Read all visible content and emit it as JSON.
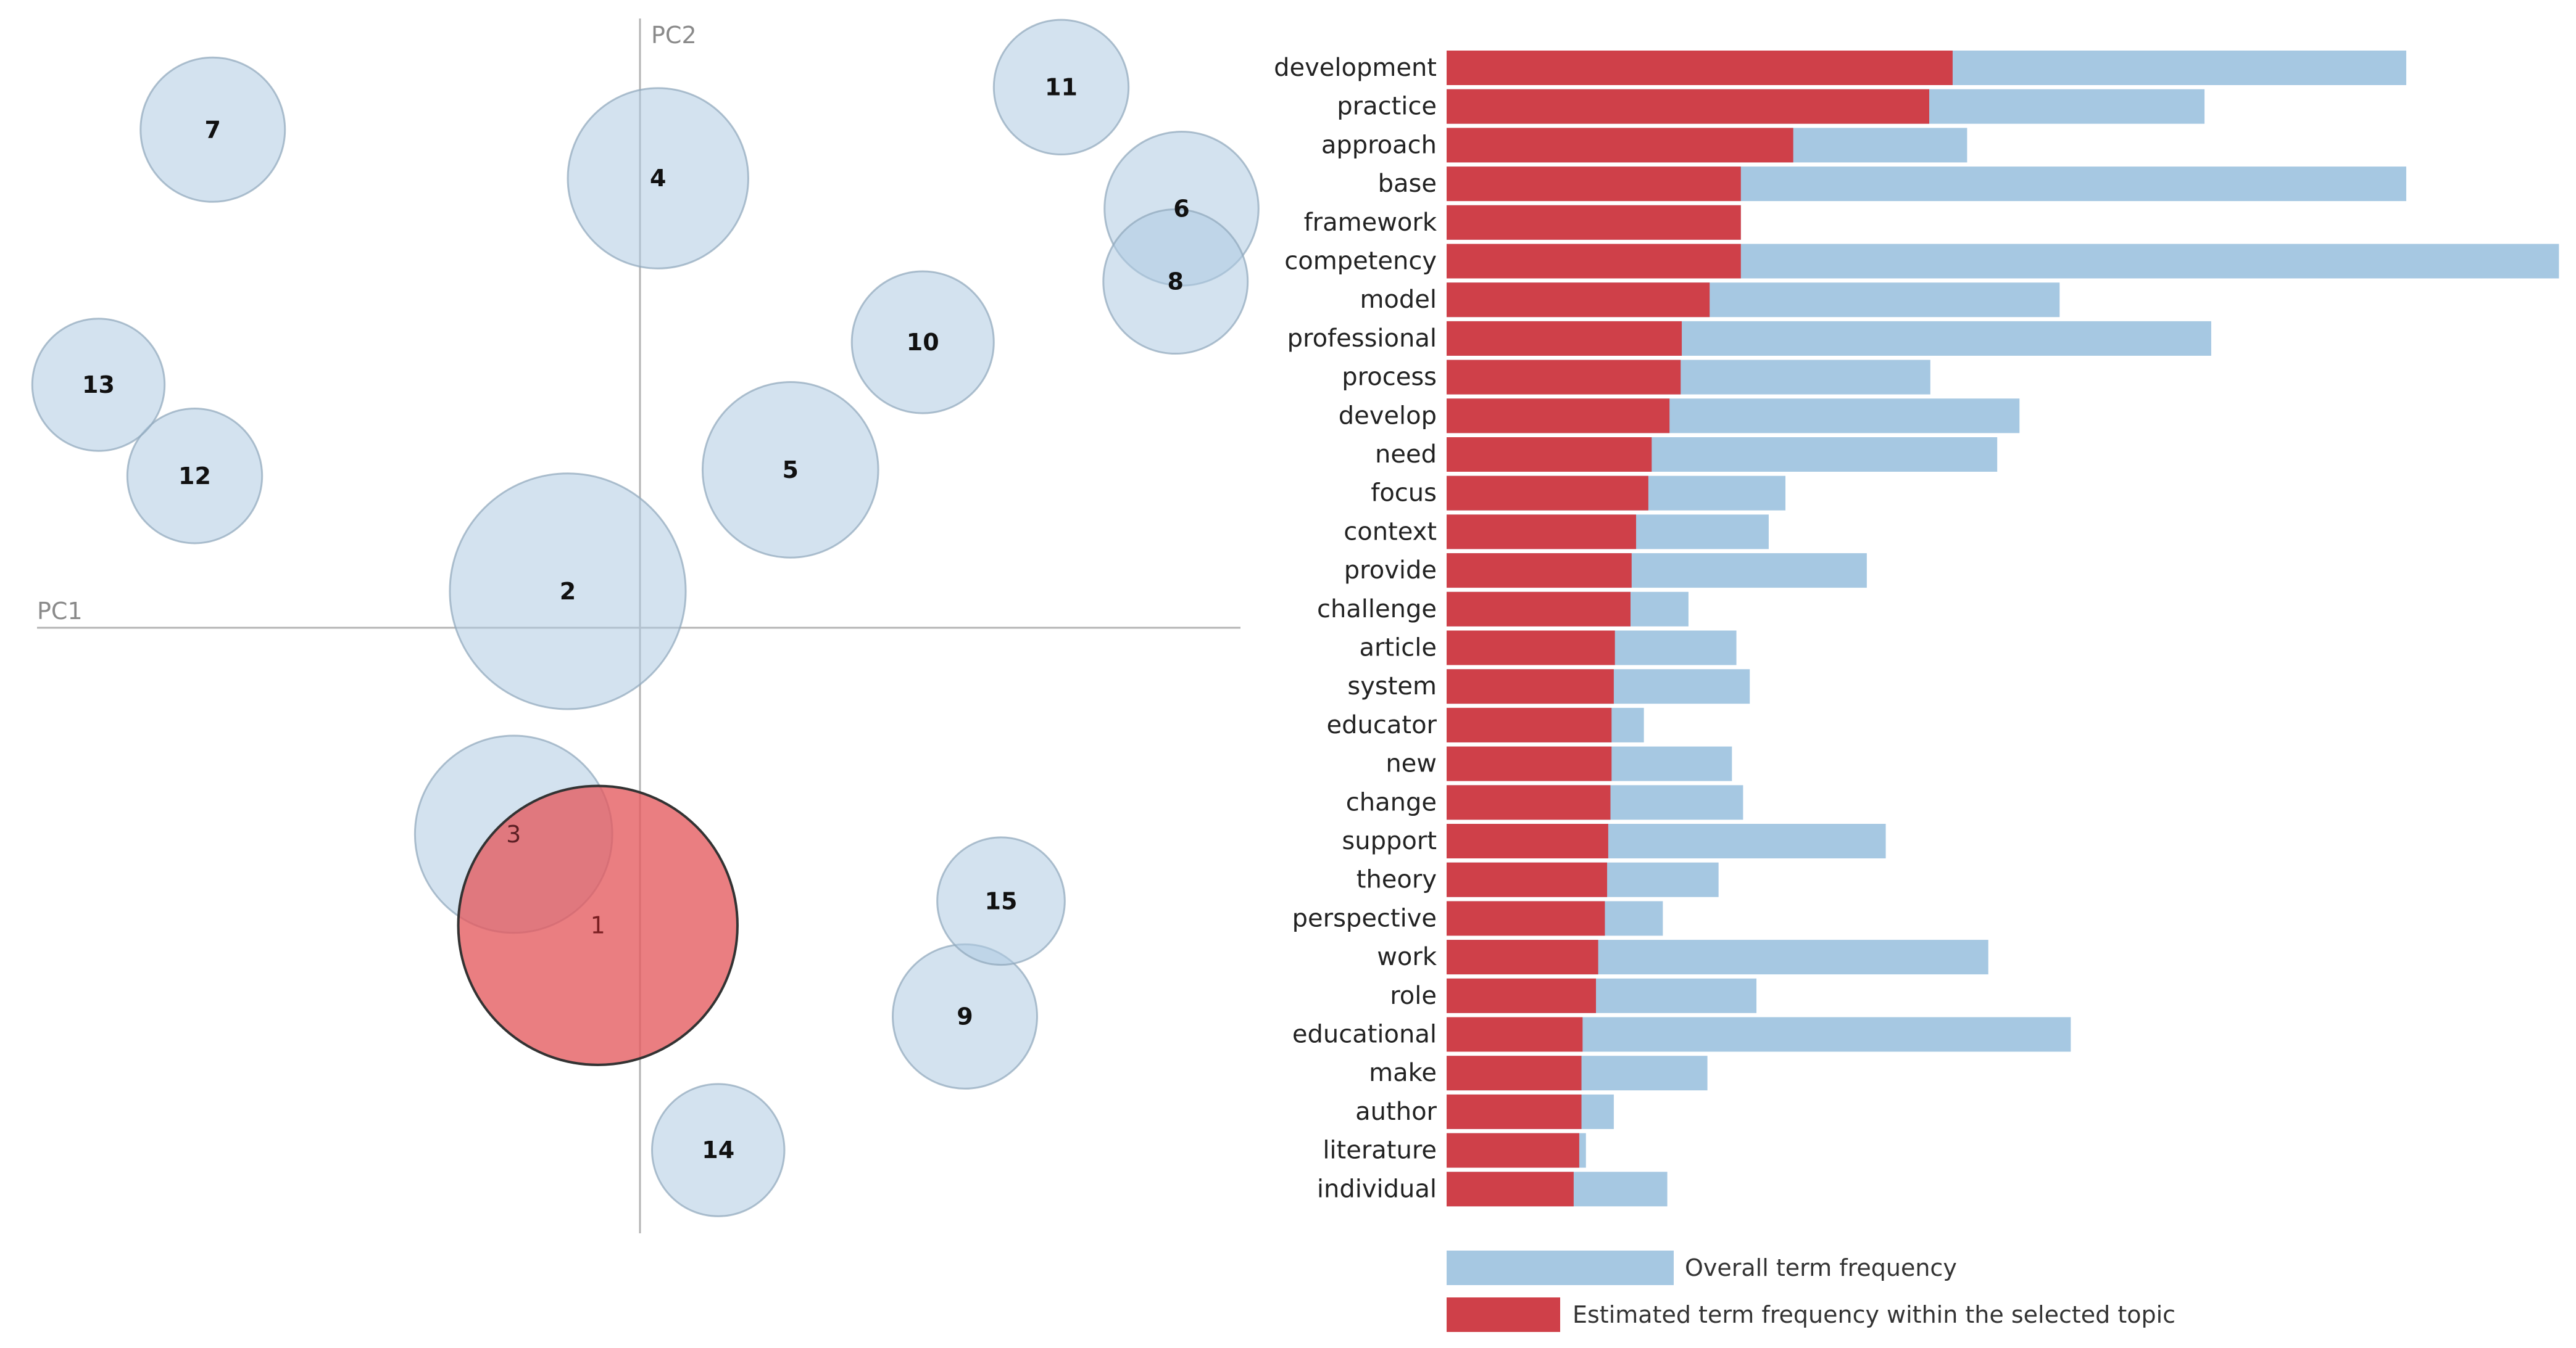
{
  "chart_data": [
    {
      "type": "scatter",
      "subtype": "bubble",
      "xlabel": "PC1",
      "ylabel": "PC2",
      "xlim": [
        -1.0,
        1.0
      ],
      "ylim": [
        -1.0,
        1.0
      ],
      "selected_topic": "1",
      "topics": [
        {
          "id": "1",
          "x": -0.07,
          "y": -0.49,
          "size": 0.116
        },
        {
          "id": "2",
          "x": -0.12,
          "y": 0.06,
          "size": 0.098
        },
        {
          "id": "3",
          "x": -0.21,
          "y": -0.34,
          "size": 0.082
        },
        {
          "id": "4",
          "x": 0.03,
          "y": 0.74,
          "size": 0.075
        },
        {
          "id": "5",
          "x": 0.25,
          "y": 0.26,
          "size": 0.073
        },
        {
          "id": "6",
          "x": 0.9,
          "y": 0.69,
          "size": 0.064
        },
        {
          "id": "7",
          "x": -0.71,
          "y": 0.82,
          "size": 0.06
        },
        {
          "id": "8",
          "x": 0.89,
          "y": 0.57,
          "size": 0.06
        },
        {
          "id": "9",
          "x": 0.54,
          "y": -0.64,
          "size": 0.06
        },
        {
          "id": "10",
          "x": 0.47,
          "y": 0.47,
          "size": 0.059
        },
        {
          "id": "11",
          "x": 0.7,
          "y": 0.89,
          "size": 0.056
        },
        {
          "id": "12",
          "x": -0.74,
          "y": 0.25,
          "size": 0.056
        },
        {
          "id": "13",
          "x": -0.9,
          "y": 0.4,
          "size": 0.055
        },
        {
          "id": "14",
          "x": 0.13,
          "y": -0.86,
          "size": 0.055
        },
        {
          "id": "15",
          "x": 0.6,
          "y": -0.45,
          "size": 0.053
        }
      ]
    },
    {
      "type": "bar",
      "orientation": "horizontal",
      "xlim": [
        0,
        1000
      ],
      "categories": [
        "development",
        "practice",
        "approach",
        "base",
        "framework",
        "competency",
        "model",
        "professional",
        "process",
        "develop",
        "need",
        "focus",
        "context",
        "provide",
        "challenge",
        "article",
        "system",
        "educator",
        "new",
        "change",
        "support",
        "theory",
        "perspective",
        "work",
        "role",
        "educational",
        "make",
        "author",
        "literature",
        "individual"
      ],
      "series": [
        {
          "name": "Overall term frequency",
          "color": "#a6c8e2",
          "values": [
            861,
            680,
            467,
            861,
            264,
            998,
            550,
            686,
            434,
            514,
            494,
            304,
            289,
            377,
            217,
            260,
            272,
            177,
            256,
            266,
            394,
            244,
            194,
            486,
            278,
            560,
            234,
            150,
            125,
            198
          ]
        },
        {
          "name": "Estimated term frequency within the selected topic",
          "color": "#cf4049",
          "values": [
            454,
            433,
            311,
            264,
            264,
            264,
            236,
            211,
            210,
            200,
            184,
            181,
            170,
            166,
            165,
            151,
            150,
            148,
            148,
            147,
            145,
            144,
            142,
            136,
            134,
            122,
            121,
            121,
            119,
            114
          ]
        }
      ]
    }
  ]
}
